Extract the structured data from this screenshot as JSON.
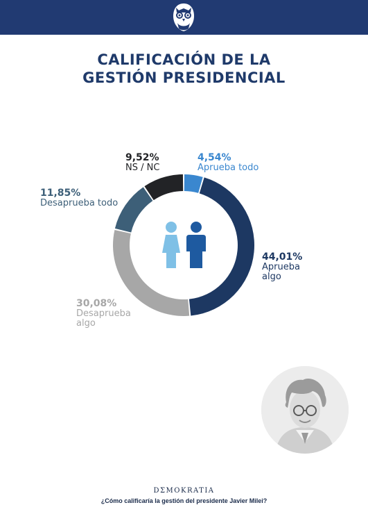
{
  "header": {
    "logo_icon": "owl-icon",
    "bar_color": "#213a72"
  },
  "title": {
    "line1": "CALIFICACIÓN DE LA",
    "line2": "GESTIÓN PRESIDENCIAL"
  },
  "chart_data": {
    "type": "pie",
    "title": "CALIFICACIÓN DE LA GESTIÓN PRESIDENCIAL",
    "variant": "donut",
    "series": [
      {
        "name": "Aprueba todo",
        "value": 4.54,
        "label": "4,54%",
        "color": "#3a87cf",
        "label_color": "#3a87cf"
      },
      {
        "name": "Aprueba algo",
        "value": 44.01,
        "label": "44,01%",
        "color": "#1d3862",
        "label_color": "#1d3862"
      },
      {
        "name": "Desaprueba algo",
        "value": 30.08,
        "label": "30,08%",
        "color": "#a7a7a7",
        "label_color": "#a7a7a7"
      },
      {
        "name": "Desaprueba todo",
        "value": 11.85,
        "label": "11,85%",
        "color": "#3d5f78",
        "label_color": "#3d5f78"
      },
      {
        "name": "NS / NC",
        "value": 9.52,
        "label": "9,52%",
        "color": "#222326",
        "label_color": "#222326"
      }
    ]
  },
  "center_icon": "people-icon",
  "photo_icon": "president-portrait-icon",
  "footer": {
    "brand": "DΣMOKRATIA",
    "question": "¿Cómo calificaría la gestión del presidente Javier Milei?"
  }
}
